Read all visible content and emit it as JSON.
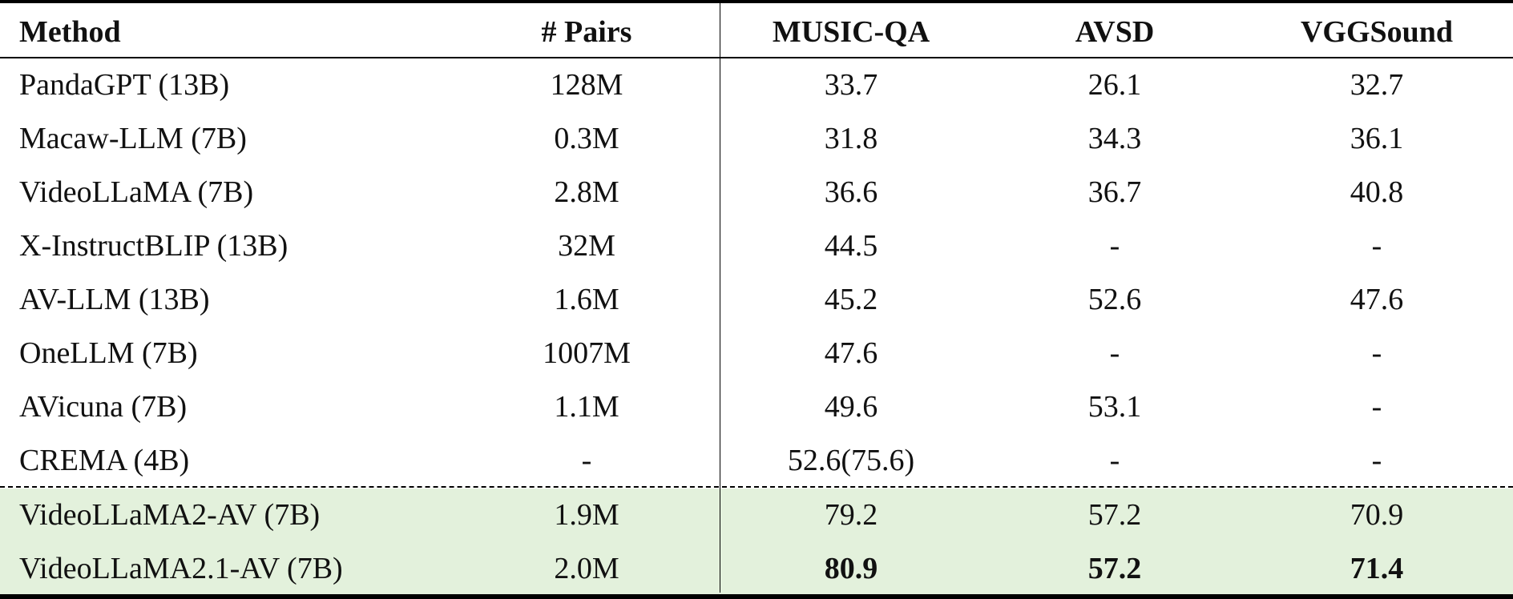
{
  "table": {
    "headers": [
      "Method",
      "# Pairs",
      "MUSIC-QA",
      "AVSD",
      "VGGSound"
    ],
    "rows": [
      {
        "method": "PandaGPT (13B)",
        "pairs": "128M",
        "music_qa": "33.7",
        "avsd": "26.1",
        "vggsound": "32.7"
      },
      {
        "method": "Macaw-LLM (7B)",
        "pairs": "0.3M",
        "music_qa": "31.8",
        "avsd": "34.3",
        "vggsound": "36.1"
      },
      {
        "method": "VideoLLaMA (7B)",
        "pairs": "2.8M",
        "music_qa": "36.6",
        "avsd": "36.7",
        "vggsound": "40.8"
      },
      {
        "method": "X-InstructBLIP (13B)",
        "pairs": "32M",
        "music_qa": "44.5",
        "avsd": "-",
        "vggsound": "-"
      },
      {
        "method": "AV-LLM (13B)",
        "pairs": "1.6M",
        "music_qa": "45.2",
        "avsd": "52.6",
        "vggsound": "47.6"
      },
      {
        "method": "OneLLM (7B)",
        "pairs": "1007M",
        "music_qa": "47.6",
        "avsd": "-",
        "vggsound": "-"
      },
      {
        "method": "AVicuna (7B)",
        "pairs": "1.1M",
        "music_qa": "49.6",
        "avsd": "53.1",
        "vggsound": "-"
      },
      {
        "method": "CREMA (4B)",
        "pairs": "-",
        "music_qa": "52.6(75.6)",
        "avsd": "-",
        "vggsound": "-"
      },
      {
        "method": "VideoLLaMA2-AV (7B)",
        "pairs": "1.9M",
        "music_qa": "79.2",
        "avsd": "57.2",
        "vggsound": "70.9"
      },
      {
        "method": "VideoLLaMA2.1-AV (7B)",
        "pairs": "2.0M",
        "music_qa": "80.9",
        "avsd": "57.2",
        "vggsound": "71.4"
      }
    ],
    "highlight_color": "#e3f1dc"
  }
}
